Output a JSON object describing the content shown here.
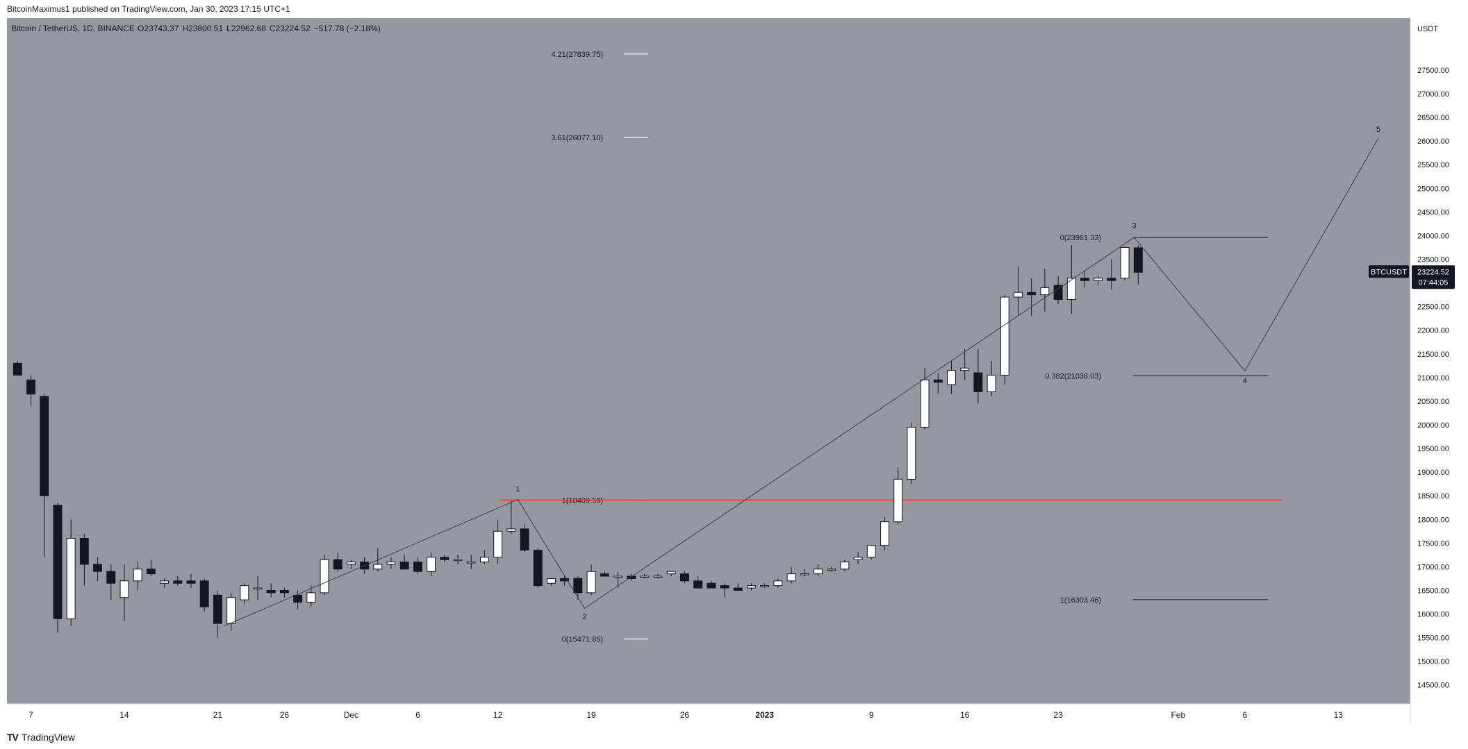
{
  "header": {
    "published_line": "BitcoinMaximus1 published on TradingView.com, Jan 30, 2023 17:15 UTC+1"
  },
  "footer": {
    "brand": "TradingView"
  },
  "colors": {
    "plot_bg": "#9598a1",
    "axis_bg": "#ffffff",
    "up_candle": "#ffffff",
    "down_candle": "#131722",
    "wick": "#131722",
    "wave_line": "#3c3f47",
    "fib_line_white": "#ffffff",
    "fib_line_dark": "#131722",
    "resistance_line": "#e53935",
    "price_label_bg": "#131722",
    "price_label_text": "#ffffff"
  },
  "chart_data": {
    "type": "candlestick",
    "symbol_line": {
      "name": "Bitcoin / TetherUS, 1D, BINANCE",
      "o_label": "O",
      "o": "23743.37",
      "h_label": "H",
      "h": "23800.51",
      "l_label": "L",
      "l": "22962.68",
      "c_label": "C",
      "c": "23224.52",
      "change": "−517.78 (−2.18%)"
    },
    "y_axis": {
      "unit": "USDT",
      "range": [
        14100,
        28600
      ],
      "ticks": [
        "27500.00",
        "27000.00",
        "26500.00",
        "26000.00",
        "25500.00",
        "25000.00",
        "24500.00",
        "24000.00",
        "23500.00",
        "23000.00",
        "22500.00",
        "22000.00",
        "21500.00",
        "21000.00",
        "20500.00",
        "20000.00",
        "19500.00",
        "19000.00",
        "18500.00",
        "18000.00",
        "17500.00",
        "17000.00",
        "16500.00",
        "16000.00",
        "15500.00",
        "15000.00",
        "14500.00"
      ]
    },
    "x_axis": {
      "start_date": "2022-11-06",
      "day_range": [
        -0.8,
        104.4
      ],
      "ticks": [
        {
          "label": "7",
          "day": 1
        },
        {
          "label": "14",
          "day": 8
        },
        {
          "label": "21",
          "day": 15
        },
        {
          "label": "26",
          "day": 20
        },
        {
          "label": "Dec",
          "day": 25
        },
        {
          "label": "6",
          "day": 30
        },
        {
          "label": "12",
          "day": 36
        },
        {
          "label": "19",
          "day": 43
        },
        {
          "label": "26",
          "day": 50
        },
        {
          "label": "2023",
          "day": 56
        },
        {
          "label": "9",
          "day": 64
        },
        {
          "label": "16",
          "day": 71
        },
        {
          "label": "23",
          "day": 78
        },
        {
          "label": "Feb",
          "day": 87
        },
        {
          "label": "6",
          "day": 92
        },
        {
          "label": "13",
          "day": 99
        }
      ]
    },
    "candles": [
      {
        "d": 0,
        "o": 21300,
        "h": 21350,
        "l": 21050,
        "c": 21050
      },
      {
        "d": 1,
        "o": 20950,
        "h": 21050,
        "l": 20400,
        "c": 20650
      },
      {
        "d": 2,
        "o": 20600,
        "h": 20650,
        "l": 17200,
        "c": 18500
      },
      {
        "d": 3,
        "o": 18300,
        "h": 18350,
        "l": 15600,
        "c": 15900
      },
      {
        "d": 4,
        "o": 15900,
        "h": 18000,
        "l": 15750,
        "c": 17600
      },
      {
        "d": 5,
        "o": 17600,
        "h": 17700,
        "l": 16600,
        "c": 17050
      },
      {
        "d": 6,
        "o": 17050,
        "h": 17200,
        "l": 16700,
        "c": 16900
      },
      {
        "d": 7,
        "o": 16900,
        "h": 17050,
        "l": 16300,
        "c": 16650
      },
      {
        "d": 8,
        "o": 16350,
        "h": 17050,
        "l": 15850,
        "c": 16700
      },
      {
        "d": 9,
        "o": 16700,
        "h": 17100,
        "l": 16500,
        "c": 16950
      },
      {
        "d": 10,
        "o": 16950,
        "h": 17150,
        "l": 16800,
        "c": 16850
      },
      {
        "d": 11,
        "o": 16650,
        "h": 16750,
        "l": 16550,
        "c": 16700
      },
      {
        "d": 12,
        "o": 16700,
        "h": 16800,
        "l": 16600,
        "c": 16650
      },
      {
        "d": 13,
        "o": 16700,
        "h": 16850,
        "l": 16550,
        "c": 16650
      },
      {
        "d": 14,
        "o": 16700,
        "h": 16750,
        "l": 16050,
        "c": 16150
      },
      {
        "d": 15,
        "o": 16400,
        "h": 16500,
        "l": 15500,
        "c": 15800
      },
      {
        "d": 16,
        "o": 15800,
        "h": 16450,
        "l": 15650,
        "c": 16350
      },
      {
        "d": 17,
        "o": 16300,
        "h": 16650,
        "l": 16200,
        "c": 16600
      },
      {
        "d": 18,
        "o": 16550,
        "h": 16800,
        "l": 16300,
        "c": 16550
      },
      {
        "d": 19,
        "o": 16500,
        "h": 16650,
        "l": 16350,
        "c": 16450
      },
      {
        "d": 20,
        "o": 16500,
        "h": 16550,
        "l": 16350,
        "c": 16450
      },
      {
        "d": 21,
        "o": 16400,
        "h": 16500,
        "l": 16100,
        "c": 16250
      },
      {
        "d": 22,
        "o": 16250,
        "h": 16600,
        "l": 16150,
        "c": 16450
      },
      {
        "d": 23,
        "o": 16450,
        "h": 17250,
        "l": 16400,
        "c": 17150
      },
      {
        "d": 24,
        "o": 17150,
        "h": 17300,
        "l": 16900,
        "c": 16950
      },
      {
        "d": 25,
        "o": 17050,
        "h": 17150,
        "l": 16950,
        "c": 17100
      },
      {
        "d": 26,
        "o": 17100,
        "h": 17200,
        "l": 16850,
        "c": 16950
      },
      {
        "d": 27,
        "o": 16950,
        "h": 17400,
        "l": 16900,
        "c": 17050
      },
      {
        "d": 28,
        "o": 17050,
        "h": 17200,
        "l": 16950,
        "c": 17100
      },
      {
        "d": 29,
        "o": 17100,
        "h": 17250,
        "l": 16950,
        "c": 16950
      },
      {
        "d": 30,
        "o": 17100,
        "h": 17200,
        "l": 16850,
        "c": 16900
      },
      {
        "d": 31,
        "o": 16900,
        "h": 17300,
        "l": 16800,
        "c": 17200
      },
      {
        "d": 32,
        "o": 17200,
        "h": 17250,
        "l": 17100,
        "c": 17150
      },
      {
        "d": 33,
        "o": 17150,
        "h": 17250,
        "l": 17050,
        "c": 17150
      },
      {
        "d": 34,
        "o": 17100,
        "h": 17250,
        "l": 16950,
        "c": 17100
      },
      {
        "d": 35,
        "o": 17100,
        "h": 17350,
        "l": 17050,
        "c": 17200
      },
      {
        "d": 36,
        "o": 17200,
        "h": 18000,
        "l": 17050,
        "c": 17750
      },
      {
        "d": 37,
        "o": 17750,
        "h": 18400,
        "l": 17700,
        "c": 17800
      },
      {
        "d": 38,
        "o": 17800,
        "h": 17900,
        "l": 17300,
        "c": 17350
      },
      {
        "d": 39,
        "o": 17350,
        "h": 17400,
        "l": 16550,
        "c": 16600
      },
      {
        "d": 40,
        "o": 16650,
        "h": 16750,
        "l": 16600,
        "c": 16750
      },
      {
        "d": 41,
        "o": 16750,
        "h": 16800,
        "l": 16600,
        "c": 16700
      },
      {
        "d": 42,
        "o": 16750,
        "h": 16800,
        "l": 16300,
        "c": 16450
      },
      {
        "d": 43,
        "o": 16450,
        "h": 17050,
        "l": 16400,
        "c": 16900
      },
      {
        "d": 44,
        "o": 16850,
        "h": 16900,
        "l": 16800,
        "c": 16800
      },
      {
        "d": 45,
        "o": 16800,
        "h": 16900,
        "l": 16550,
        "c": 16800
      },
      {
        "d": 46,
        "o": 16800,
        "h": 16850,
        "l": 16700,
        "c": 16750
      },
      {
        "d": 47,
        "o": 16800,
        "h": 16850,
        "l": 16750,
        "c": 16800
      },
      {
        "d": 48,
        "o": 16800,
        "h": 16850,
        "l": 16750,
        "c": 16800
      },
      {
        "d": 49,
        "o": 16850,
        "h": 16900,
        "l": 16800,
        "c": 16900
      },
      {
        "d": 50,
        "o": 16850,
        "h": 16900,
        "l": 16650,
        "c": 16700
      },
      {
        "d": 51,
        "o": 16700,
        "h": 16800,
        "l": 16550,
        "c": 16550
      },
      {
        "d": 52,
        "o": 16650,
        "h": 16700,
        "l": 16550,
        "c": 16550
      },
      {
        "d": 53,
        "o": 16600,
        "h": 16650,
        "l": 16350,
        "c": 16550
      },
      {
        "d": 54,
        "o": 16550,
        "h": 16650,
        "l": 16500,
        "c": 16500
      },
      {
        "d": 55,
        "o": 16550,
        "h": 16650,
        "l": 16500,
        "c": 16600
      },
      {
        "d": 56,
        "o": 16600,
        "h": 16650,
        "l": 16550,
        "c": 16600
      },
      {
        "d": 57,
        "o": 16600,
        "h": 16750,
        "l": 16550,
        "c": 16700
      },
      {
        "d": 58,
        "o": 16700,
        "h": 17000,
        "l": 16650,
        "c": 16850
      },
      {
        "d": 59,
        "o": 16850,
        "h": 16950,
        "l": 16800,
        "c": 16850
      },
      {
        "d": 60,
        "o": 16850,
        "h": 17050,
        "l": 16800,
        "c": 16950
      },
      {
        "d": 61,
        "o": 16950,
        "h": 17000,
        "l": 16900,
        "c": 16950
      },
      {
        "d": 62,
        "o": 16950,
        "h": 17150,
        "l": 16900,
        "c": 17100
      },
      {
        "d": 63,
        "o": 17150,
        "h": 17300,
        "l": 17050,
        "c": 17200
      },
      {
        "d": 64,
        "o": 17200,
        "h": 17450,
        "l": 17150,
        "c": 17450
      },
      {
        "d": 65,
        "o": 17450,
        "h": 18050,
        "l": 17350,
        "c": 17950
      },
      {
        "d": 66,
        "o": 17950,
        "h": 19100,
        "l": 17900,
        "c": 18850
      },
      {
        "d": 67,
        "o": 18850,
        "h": 20050,
        "l": 18750,
        "c": 19950
      },
      {
        "d": 68,
        "o": 19950,
        "h": 21200,
        "l": 19900,
        "c": 20950
      },
      {
        "d": 69,
        "o": 20950,
        "h": 21100,
        "l": 20650,
        "c": 20900
      },
      {
        "d": 70,
        "o": 20850,
        "h": 21350,
        "l": 20650,
        "c": 21150
      },
      {
        "d": 71,
        "o": 21150,
        "h": 21600,
        "l": 20950,
        "c": 21200
      },
      {
        "d": 72,
        "o": 21100,
        "h": 21600,
        "l": 20450,
        "c": 20700
      },
      {
        "d": 73,
        "o": 20700,
        "h": 21350,
        "l": 20600,
        "c": 21050
      },
      {
        "d": 74,
        "o": 21050,
        "h": 22750,
        "l": 20850,
        "c": 22700
      },
      {
        "d": 75,
        "o": 22700,
        "h": 23350,
        "l": 22300,
        "c": 22800
      },
      {
        "d": 76,
        "o": 22800,
        "h": 23100,
        "l": 22300,
        "c": 22750
      },
      {
        "d": 77,
        "o": 22750,
        "h": 23300,
        "l": 22400,
        "c": 22900
      },
      {
        "d": 78,
        "o": 22950,
        "h": 23150,
        "l": 22550,
        "c": 22650
      },
      {
        "d": 79,
        "o": 22650,
        "h": 23800,
        "l": 22350,
        "c": 23100
      },
      {
        "d": 80,
        "o": 23100,
        "h": 23250,
        "l": 22900,
        "c": 23050
      },
      {
        "d": 81,
        "o": 23050,
        "h": 23150,
        "l": 22950,
        "c": 23100
      },
      {
        "d": 82,
        "o": 23100,
        "h": 23500,
        "l": 22850,
        "c": 23050
      },
      {
        "d": 83,
        "o": 23100,
        "h": 23750,
        "l": 23050,
        "c": 23750
      },
      {
        "d": 84,
        "o": 23743,
        "h": 23800,
        "l": 22962,
        "c": 23224
      }
    ],
    "wave_path": [
      {
        "d": 15.5,
        "p": 15750
      },
      {
        "d": 37.5,
        "p": 18420
      },
      {
        "d": 42.5,
        "p": 16120
      },
      {
        "d": 83.7,
        "p": 23961
      },
      {
        "d": 92,
        "p": 21140
      },
      {
        "d": 102,
        "p": 26060
      }
    ],
    "wave_labels": [
      {
        "label": "1",
        "d": 37.5,
        "p": 18650
      },
      {
        "label": "2",
        "d": 42.5,
        "p": 15950
      },
      {
        "label": "3",
        "d": 83.7,
        "p": 24220
      },
      {
        "label": "4",
        "d": 92,
        "p": 20940
      },
      {
        "label": "5",
        "d": 102,
        "p": 26250
      }
    ],
    "fib_levels_white": [
      {
        "label": "4.21(27839.75)",
        "p": 27839.75
      },
      {
        "label": "3.61(26077.10)",
        "p": 26077.1
      },
      {
        "label": "1(18409.59)",
        "p": 18409.59
      },
      {
        "label": "0(15471.85)",
        "p": 15471.85
      }
    ],
    "fib_levels_dark": [
      {
        "label": "0(23961.33)",
        "p": 23961.33
      },
      {
        "label": "0.382(21036.03)",
        "p": 21036.03
      },
      {
        "label": "1(16303.46)",
        "p": 16303.46
      }
    ],
    "resistance_level": {
      "p": 18409.59
    },
    "price_label": {
      "symbol": "BTCUSDT",
      "price": "23224.52",
      "countdown": "07:44:05",
      "p": 23224.52
    }
  }
}
